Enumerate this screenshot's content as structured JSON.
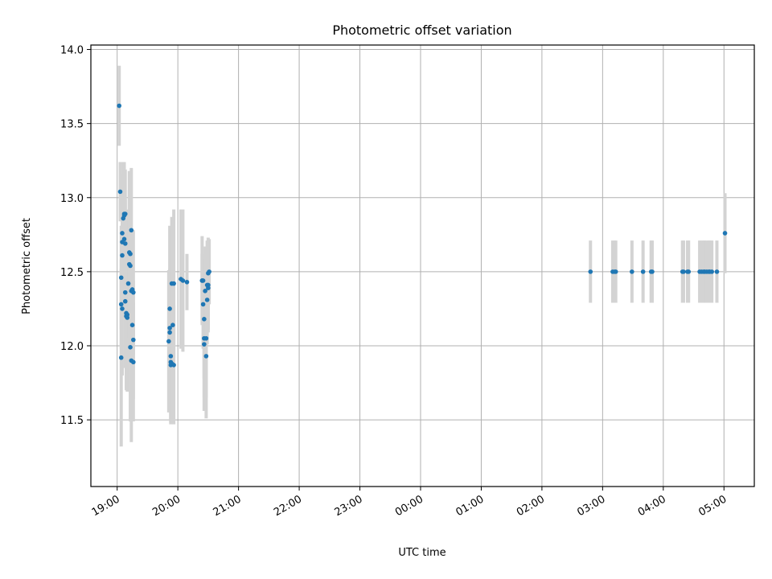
{
  "chart_data": {
    "type": "scatter",
    "title": "Photometric offset variation",
    "xlabel": "UTC time",
    "ylabel": "Photometric offset",
    "x_tick_labels": [
      "19:00",
      "20:00",
      "21:00",
      "22:00",
      "23:00",
      "00:00",
      "01:00",
      "02:00",
      "03:00",
      "04:00",
      "05:00"
    ],
    "y_tick_labels": [
      "11.5",
      "12.0",
      "12.5",
      "13.0",
      "13.5",
      "14.0"
    ],
    "y_ticks": [
      11.5,
      12.0,
      12.5,
      13.0,
      13.5,
      14.0
    ],
    "xlim": [
      "18:34",
      "05:30"
    ],
    "ylim": [
      11.05,
      14.03
    ],
    "grid": true,
    "colors": {
      "marker": "#1f77b4",
      "errorbar": "#d3d3d3"
    },
    "series": [
      {
        "points": [
          {
            "x": "19:02",
            "y": 13.62,
            "err": 0.27
          },
          {
            "x": "19:03",
            "y": 13.04,
            "err": 0.2
          },
          {
            "x": "19:04",
            "y": 12.28,
            "err": 0.3
          },
          {
            "x": "19:04",
            "y": 11.92,
            "err": 0.6
          },
          {
            "x": "19:04",
            "y": 12.46,
            "err": 0.35
          },
          {
            "x": "19:05",
            "y": 12.61,
            "err": 0.4
          },
          {
            "x": "19:05",
            "y": 12.76,
            "err": 0.4
          },
          {
            "x": "19:05",
            "y": 12.25,
            "err": 0.45
          },
          {
            "x": "19:05",
            "y": 12.7,
            "err": 0.35
          },
          {
            "x": "19:06",
            "y": 12.86,
            "err": 0.38
          },
          {
            "x": "19:07",
            "y": 12.89,
            "err": 0.35
          },
          {
            "x": "19:07",
            "y": 12.88,
            "err": 0.35
          },
          {
            "x": "19:07",
            "y": 12.72,
            "err": 0.3
          },
          {
            "x": "19:08",
            "y": 12.69,
            "err": 0.3
          },
          {
            "x": "19:08",
            "y": 12.89,
            "err": 0.3
          },
          {
            "x": "19:08",
            "y": 12.36,
            "err": 0.45
          },
          {
            "x": "19:08",
            "y": 12.3,
            "err": 0.45
          },
          {
            "x": "19:09",
            "y": 12.22,
            "err": 0.5
          },
          {
            "x": "19:09",
            "y": 12.2,
            "err": 0.5
          },
          {
            "x": "19:10",
            "y": 12.19,
            "err": 0.5
          },
          {
            "x": "19:10",
            "y": 12.21,
            "err": 0.4
          },
          {
            "x": "19:11",
            "y": 12.42,
            "err": 0.5
          },
          {
            "x": "19:12",
            "y": 12.63,
            "err": 0.55
          },
          {
            "x": "19:12",
            "y": 12.55,
            "err": 0.5
          },
          {
            "x": "19:13",
            "y": 12.62,
            "err": 0.4
          },
          {
            "x": "19:13",
            "y": 12.54,
            "err": 0.4
          },
          {
            "x": "19:13",
            "y": 11.99,
            "err": 0.5
          },
          {
            "x": "19:14",
            "y": 12.78,
            "err": 0.42
          },
          {
            "x": "19:14",
            "y": 11.9,
            "err": 0.55
          },
          {
            "x": "19:14",
            "y": 12.37,
            "err": 0.4
          },
          {
            "x": "19:15",
            "y": 12.14,
            "err": 0.5
          },
          {
            "x": "19:15",
            "y": 12.38,
            "err": 0.4
          },
          {
            "x": "19:16",
            "y": 11.89,
            "err": 0.4
          },
          {
            "x": "19:16",
            "y": 12.04,
            "err": 0.4
          },
          {
            "x": "19:16",
            "y": 12.36,
            "err": 0.42
          },
          {
            "x": "19:51",
            "y": 12.03,
            "err": 0.48
          },
          {
            "x": "19:52",
            "y": 12.25,
            "err": 0.56
          },
          {
            "x": "19:52",
            "y": 12.12,
            "err": 0.4
          },
          {
            "x": "19:52",
            "y": 12.09,
            "err": 0.4
          },
          {
            "x": "19:53",
            "y": 11.93,
            "err": 0.45
          },
          {
            "x": "19:53",
            "y": 11.89,
            "err": 0.4
          },
          {
            "x": "19:53",
            "y": 11.87,
            "err": 0.4
          },
          {
            "x": "19:54",
            "y": 11.88,
            "err": 0.4
          },
          {
            "x": "19:54",
            "y": 12.42,
            "err": 0.45
          },
          {
            "x": "19:55",
            "y": 12.14,
            "err": 0.5
          },
          {
            "x": "19:56",
            "y": 12.42,
            "err": 0.5
          },
          {
            "x": "19:56",
            "y": 11.87,
            "err": 0.4
          },
          {
            "x": "20:03",
            "y": 12.45,
            "err": 0.47
          },
          {
            "x": "20:05",
            "y": 12.44,
            "err": 0.48
          },
          {
            "x": "20:09",
            "y": 12.43,
            "err": 0.19
          },
          {
            "x": "20:24",
            "y": 12.44,
            "err": 0.18
          },
          {
            "x": "20:24",
            "y": 12.44,
            "err": 0.3
          },
          {
            "x": "20:25",
            "y": 12.28,
            "err": 0.3
          },
          {
            "x": "20:25",
            "y": 12.44,
            "err": 0.15
          },
          {
            "x": "20:26",
            "y": 12.01,
            "err": 0.45
          },
          {
            "x": "20:26",
            "y": 12.18,
            "err": 0.4
          },
          {
            "x": "20:26",
            "y": 12.05,
            "err": 0.4
          },
          {
            "x": "20:27",
            "y": 12.37,
            "err": 0.3
          },
          {
            "x": "20:28",
            "y": 12.05,
            "err": 0.4
          },
          {
            "x": "20:28",
            "y": 11.93,
            "err": 0.42
          },
          {
            "x": "20:29",
            "y": 12.31,
            "err": 0.3
          },
          {
            "x": "20:29",
            "y": 12.41,
            "err": 0.3
          },
          {
            "x": "20:30",
            "y": 12.49,
            "err": 0.24
          },
          {
            "x": "20:30",
            "y": 12.39,
            "err": 0.3
          },
          {
            "x": "20:30",
            "y": 12.41,
            "err": 0.3
          },
          {
            "x": "20:31",
            "y": 12.5,
            "err": 0.22
          },
          {
            "x": "02:48",
            "y": 12.5,
            "err": 0.21
          },
          {
            "x": "03:10",
            "y": 12.5,
            "err": 0.21
          },
          {
            "x": "03:12",
            "y": 12.5,
            "err": 0.21
          },
          {
            "x": "03:13",
            "y": 12.5,
            "err": 0.21
          },
          {
            "x": "03:29",
            "y": 12.5,
            "err": 0.21
          },
          {
            "x": "03:40",
            "y": 12.5,
            "err": 0.21
          },
          {
            "x": "03:48",
            "y": 12.5,
            "err": 0.21
          },
          {
            "x": "03:49",
            "y": 12.5,
            "err": 0.21
          },
          {
            "x": "04:19",
            "y": 12.5,
            "err": 0.21
          },
          {
            "x": "04:20",
            "y": 12.5,
            "err": 0.21
          },
          {
            "x": "04:24",
            "y": 12.5,
            "err": 0.21
          },
          {
            "x": "04:25",
            "y": 12.5,
            "err": 0.21
          },
          {
            "x": "04:36",
            "y": 12.5,
            "err": 0.21
          },
          {
            "x": "04:38",
            "y": 12.5,
            "err": 0.21
          },
          {
            "x": "04:40",
            "y": 12.5,
            "err": 0.21
          },
          {
            "x": "04:41",
            "y": 12.5,
            "err": 0.21
          },
          {
            "x": "04:43",
            "y": 12.5,
            "err": 0.21
          },
          {
            "x": "04:45",
            "y": 12.5,
            "err": 0.21
          },
          {
            "x": "04:46",
            "y": 12.5,
            "err": 0.21
          },
          {
            "x": "04:48",
            "y": 12.5,
            "err": 0.21
          },
          {
            "x": "04:53",
            "y": 12.5,
            "err": 0.21
          },
          {
            "x": "05:01",
            "y": 12.76,
            "err": 0.27
          }
        ]
      }
    ]
  }
}
